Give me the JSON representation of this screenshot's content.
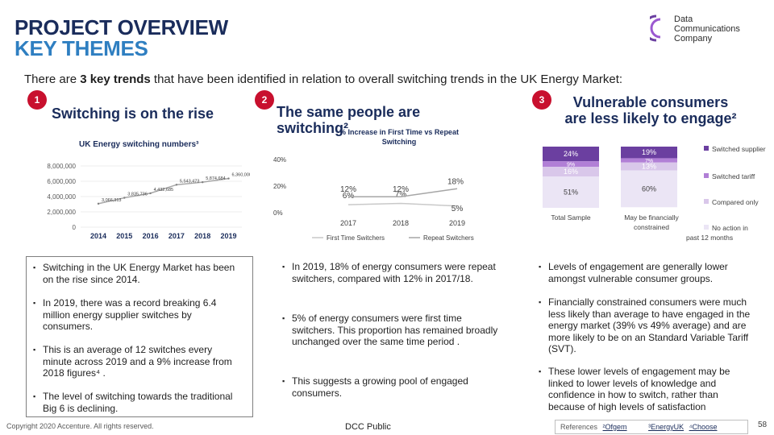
{
  "header": {
    "title_line1": "PROJECT OVERVIEW",
    "title_line2": "KEY THEMES",
    "logo_line1": "Data",
    "logo_line2": "Communications",
    "logo_line3": "Company"
  },
  "intro": {
    "pre": "There are ",
    "bold": "3 key trends",
    "post": " that have been identified in relation to overall switching trends in the UK Energy Market:"
  },
  "columns": [
    {
      "number": "1",
      "heading": "Switching is on the rise",
      "chart_title": "UK Energy switching numbers³",
      "bullets": [
        "Switching in the UK Energy Market has been on the rise since 2014.",
        "In 2019, there was a record breaking 6.4 million energy supplier switches by consumers.",
        "This is an average of 12 switches every minute across 2019 and a 9% increase from 2018 figures⁴ .",
        "The level of switching towards the traditional Big 6 is declining."
      ]
    },
    {
      "number": "2",
      "heading_line1": "The same people are",
      "heading_line2": "switching²",
      "chart_title_line1": "% Increase in First Time vs Repeat",
      "chart_title_line2": "Switching",
      "bullets": [
        "In 2019, 18% of energy consumers were repeat switchers, compared with 12% in 2017/18.",
        "5% of energy consumers were first time switchers. This proportion has remained broadly unchanged over the same time period .",
        "This suggests a growing pool of engaged consumers."
      ]
    },
    {
      "number": "3",
      "heading_line1": "Vulnerable consumers",
      "heading_line2": "are less likely to engage²",
      "bullets": [
        "Levels of engagement are generally lower amongst vulnerable consumer groups.",
        "Financially constrained consumers were much less likely than average to have engaged in the energy market (39% vs 49% average) and are more likely to be on an Standard Variable Tariff (SVT).",
        "These lower levels of engagement may be linked to lower levels of knowledge and confidence in how to switch, rather than because of high levels of satisfaction"
      ]
    }
  ],
  "footer": {
    "copyright": "Copyright 2020 Accenture. All rights reserved.",
    "classification": "DCC Public",
    "references_label": "References",
    "ref1": "²Ofgem",
    "ref2": "³EnergyUK",
    "ref3": "⁴Choose",
    "page_number": "58"
  },
  "colors": {
    "navy": "#1a2c5b",
    "blue": "#2f7fc1",
    "red_badge": "#c8102e",
    "purple_dark": "#6b3fa0",
    "purple_mid": "#9b59d0",
    "purple_light": "#d9d2e9",
    "purple_pale": "#ebe5f5",
    "line_grey": "#a6a6a6"
  },
  "chart_data": [
    {
      "type": "line",
      "title": "UK Energy switching numbers³",
      "x": [
        "2014",
        "2015",
        "2016",
        "2017",
        "2018",
        "2019"
      ],
      "series": [
        {
          "values": [
            3066313,
            3835736,
            4432685,
            5543473,
            5874684,
            6360000
          ],
          "labels": [
            "3,066,313",
            "3,835,736",
            "4,432,685",
            "5,543,473",
            "5,874,684",
            "6,360,000"
          ]
        }
      ],
      "ylim": [
        0,
        8000000
      ],
      "yticks": [
        "8,000,000",
        "6,000,000",
        "4,000,000",
        "2,000,000",
        "0"
      ]
    },
    {
      "type": "line",
      "title": "% Increase in First Time vs Repeat Switching",
      "x": [
        "2017",
        "2018",
        "2019"
      ],
      "series": [
        {
          "name": "First Time Switchers",
          "values": [
            6,
            7,
            5
          ],
          "labels": [
            "6%",
            "7%",
            "5%"
          ]
        },
        {
          "name": "Repeat Switchers",
          "values": [
            12,
            12,
            18
          ],
          "labels": [
            "12%",
            "12%",
            "18%"
          ]
        }
      ],
      "ylim": [
        0,
        40
      ],
      "yticks": [
        "40%",
        "20%",
        "0%"
      ]
    },
    {
      "type": "bar",
      "categories": [
        "Total Sample",
        "May be financially constrained"
      ],
      "series": [
        {
          "name": "Switched supplier",
          "values": [
            24,
            19
          ],
          "labels": [
            "24%",
            "19%"
          ]
        },
        {
          "name": "Switched tariff",
          "values": [
            9,
            7
          ],
          "labels": [
            "9%",
            "7%"
          ]
        },
        {
          "name": "Compared only",
          "values": [
            16,
            13
          ],
          "labels": [
            "16%",
            "13%"
          ]
        },
        {
          "name": "No action in past 12 months",
          "values": [
            51,
            60
          ],
          "labels": [
            "51%",
            "60%"
          ]
        }
      ],
      "stacked": true,
      "legend": "right"
    }
  ]
}
